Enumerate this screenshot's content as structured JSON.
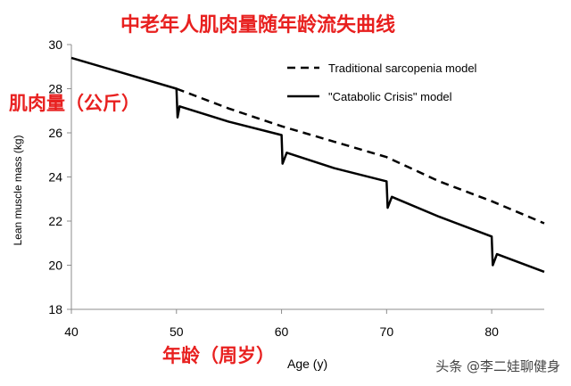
{
  "overlay": {
    "title_cn": "中老年人肌肉量随年龄流失曲线",
    "ylabel_cn": "肌肉量（公斤）",
    "xlabel_cn": "年龄（周岁）",
    "watermark": "头条 @李二娃聊健身"
  },
  "colors": {
    "overlay_red": "#e8201f",
    "line": "#000000",
    "axis": "#8c8c8c"
  },
  "chart_data": {
    "type": "line",
    "xlabel": "Age (y)",
    "ylabel": "Lean muscle mass (kg)",
    "xlim": [
      40,
      85
    ],
    "ylim": [
      18,
      30
    ],
    "x_ticks": [
      "40",
      "50",
      "60",
      "70",
      "80"
    ],
    "y_ticks": [
      "18",
      "20",
      "22",
      "24",
      "26",
      "28",
      "30"
    ],
    "legend_position": "top-right",
    "series": [
      {
        "name": "Traditional sarcopenia model",
        "style": "dashed",
        "x": [
          50,
          55,
          60,
          65,
          70,
          75,
          80,
          85
        ],
        "y": [
          28.0,
          27.1,
          26.3,
          25.6,
          24.9,
          23.8,
          22.9,
          21.9
        ]
      },
      {
        "name": "\"Catabolic Crisis\" model",
        "style": "solid",
        "x": [
          40,
          45,
          50,
          50.1,
          50.3,
          55,
          60,
          60.1,
          60.5,
          65,
          70,
          70.1,
          70.5,
          75,
          80,
          80.1,
          80.5,
          85
        ],
        "y": [
          29.4,
          28.7,
          28.0,
          26.7,
          27.2,
          26.5,
          25.9,
          24.6,
          25.1,
          24.4,
          23.8,
          22.6,
          23.1,
          22.2,
          21.3,
          20.0,
          20.5,
          19.7
        ]
      }
    ]
  }
}
